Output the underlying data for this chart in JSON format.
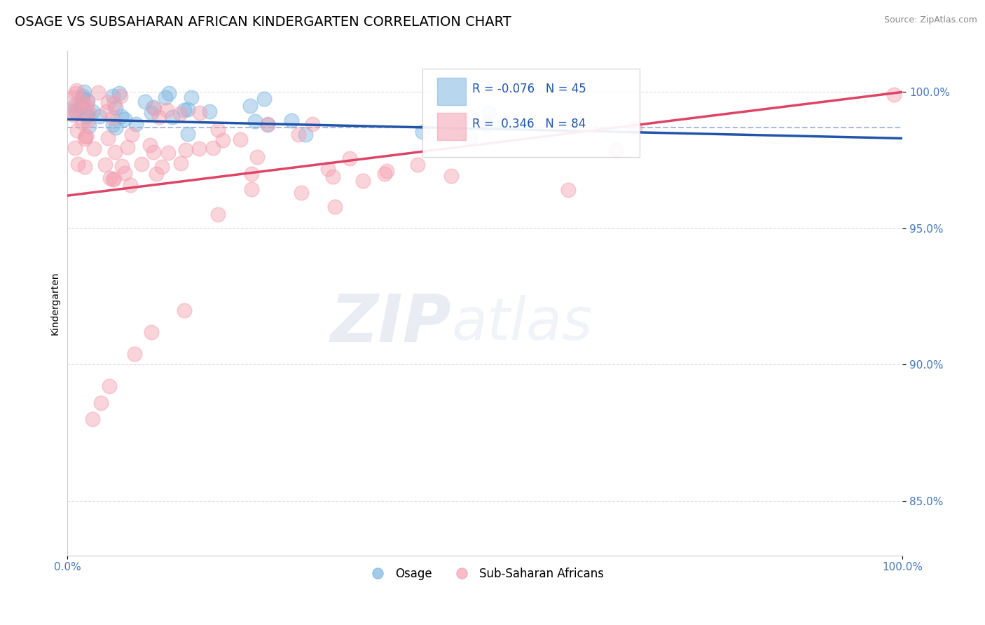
{
  "title": "OSAGE VS SUBSAHARAN AFRICAN KINDERGARTEN CORRELATION CHART",
  "source_text": "Source: ZipAtlas.com",
  "ylabel": "Kindergarten",
  "x_range": [
    0.0,
    1.0
  ],
  "y_range": [
    0.83,
    1.015
  ],
  "y_ticks": [
    0.85,
    0.9,
    0.95,
    1.0
  ],
  "y_tick_labels": [
    "85.0%",
    "90.0%",
    "95.0%",
    "100.0%"
  ],
  "x_ticks": [
    0.0,
    1.0
  ],
  "x_tick_labels": [
    "0.0%",
    "100.0%"
  ],
  "legend_r_blue": "-0.076",
  "legend_n_blue": "45",
  "legend_r_pink": "0.346",
  "legend_n_pink": "84",
  "blue_color": "#7EB5E0",
  "pink_color": "#F4A0B0",
  "trend_blue_color": "#2255AA",
  "trend_pink_color": "#DD4466",
  "dashed_line_color": "#AABBDD",
  "grid_color": "#DDDDDD",
  "background_color": "#FFFFFF",
  "watermark_zip": "ZIP",
  "watermark_atlas": "atlas",
  "title_fontsize": 14,
  "source_fontsize": 9,
  "tick_fontsize": 11,
  "ylabel_fontsize": 10,
  "legend_fontsize": 12,
  "blue_trend_start_y": 0.99,
  "blue_trend_end_y": 0.983,
  "pink_trend_start_y": 0.962,
  "pink_trend_end_y": 1.0
}
